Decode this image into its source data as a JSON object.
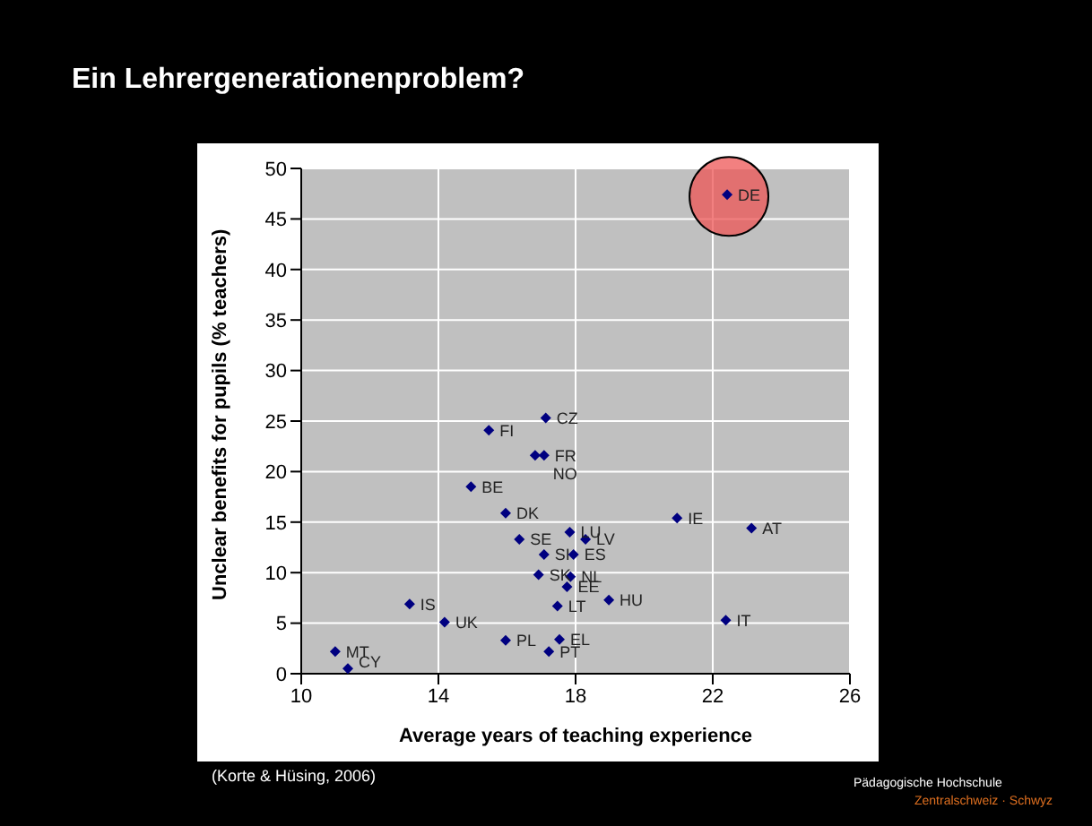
{
  "chart_data": {
    "type": "scatter",
    "title": "Ein Lehrergenerationenproblem?",
    "xlabel": "Average years of teaching experience",
    "ylabel": "Unclear benefits for pupils (% teachers)",
    "x": [
      22.42,
      17.13,
      15.47,
      17.08,
      16.82,
      14.95,
      15.96,
      16.36,
      17.83,
      18.29,
      17.08,
      17.94,
      16.92,
      17.85,
      17.75,
      18.97,
      17.47,
      13.16,
      14.18,
      15.96,
      17.53,
      17.22,
      10.99,
      11.36,
      20.96,
      23.13,
      22.38
    ],
    "series": [
      {
        "color": "#000080",
        "values": [
          47.4,
          25.3,
          24.1,
          21.6,
          21.6,
          18.5,
          15.9,
          13.3,
          14.0,
          13.3,
          11.8,
          11.8,
          9.8,
          9.6,
          8.6,
          7.3,
          6.7,
          6.9,
          5.1,
          3.3,
          3.4,
          2.2,
          2.2,
          0.5,
          15.4,
          14.4,
          5.3
        ]
      }
    ],
    "xlim": [
      10,
      26
    ],
    "xticks": [
      10,
      14,
      18,
      22,
      26
    ],
    "ylim": [
      0,
      50
    ],
    "yticks": [
      0,
      5,
      10,
      15,
      20,
      25,
      30,
      35,
      40,
      45,
      50
    ],
    "grid": true,
    "marker": "diamond",
    "legend": false,
    "annotations": [
      {
        "text": "DE",
        "x": 22.42,
        "y": 47.4
      },
      {
        "text": "CZ",
        "x": 17.13,
        "y": 25.3
      },
      {
        "text": "FI",
        "x": 15.47,
        "y": 24.1
      },
      {
        "text": "FR",
        "x": 17.08,
        "y": 21.6
      },
      {
        "text": "NO",
        "x": 16.82,
        "y": 21.6
      },
      {
        "text": "BE",
        "x": 14.95,
        "y": 18.5
      },
      {
        "text": "DK",
        "x": 15.96,
        "y": 15.9
      },
      {
        "text": "SE",
        "x": 16.36,
        "y": 13.3
      },
      {
        "text": "LU",
        "x": 17.83,
        "y": 14.0
      },
      {
        "text": "LV",
        "x": 18.29,
        "y": 13.3
      },
      {
        "text": "SI",
        "x": 17.08,
        "y": 11.8
      },
      {
        "text": "ES",
        "x": 17.94,
        "y": 11.8
      },
      {
        "text": "SK",
        "x": 16.92,
        "y": 9.8
      },
      {
        "text": "NL",
        "x": 17.85,
        "y": 9.6
      },
      {
        "text": "EE",
        "x": 17.75,
        "y": 8.6
      },
      {
        "text": "HU",
        "x": 18.97,
        "y": 7.3
      },
      {
        "text": "LT",
        "x": 17.47,
        "y": 6.7
      },
      {
        "text": "IS",
        "x": 13.16,
        "y": 6.9
      },
      {
        "text": "UK",
        "x": 14.18,
        "y": 5.1
      },
      {
        "text": "PL",
        "x": 15.96,
        "y": 3.3
      },
      {
        "text": "EL",
        "x": 17.53,
        "y": 3.4
      },
      {
        "text": "PT",
        "x": 17.22,
        "y": 2.2
      },
      {
        "text": "MT",
        "x": 10.99,
        "y": 2.2
      },
      {
        "text": "CY",
        "x": 11.36,
        "y": 0.5
      },
      {
        "text": "IE",
        "x": 20.96,
        "y": 15.4
      },
      {
        "text": "AT",
        "x": 23.13,
        "y": 14.4
      },
      {
        "text": "IT",
        "x": 22.38,
        "y": 5.3
      },
      "(Korte & Hüsing, 2006)",
      "Pädagogische Hochschule",
      "Zentralschweiz · Schwyz"
    ]
  }
}
